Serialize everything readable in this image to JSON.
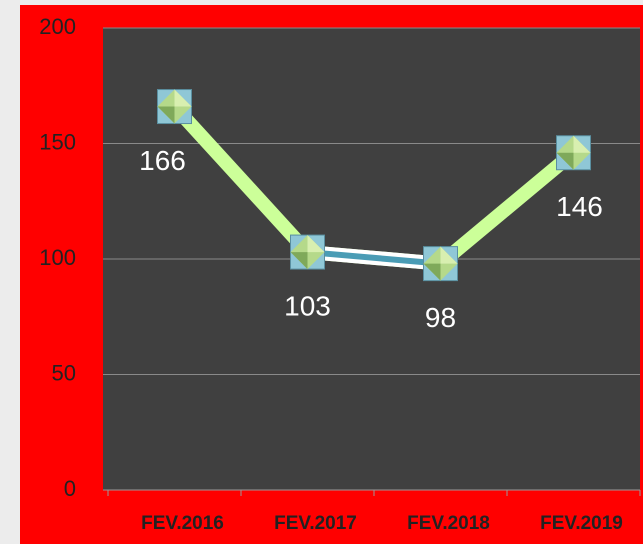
{
  "chart_data": {
    "type": "line",
    "categories": [
      "FEV.2016",
      "FEV.2017",
      "FEV.2018",
      "FEV.2019"
    ],
    "series": [
      {
        "values": [
          166,
          103,
          98,
          146
        ],
        "color": "#ccff99"
      }
    ],
    "segment_colors": [
      "#ccff99",
      "#4a9cb5",
      "#ccff99"
    ],
    "ylim": [
      0,
      200
    ],
    "yticks": [
      0,
      50,
      100,
      150,
      200
    ],
    "grid": true
  }
}
